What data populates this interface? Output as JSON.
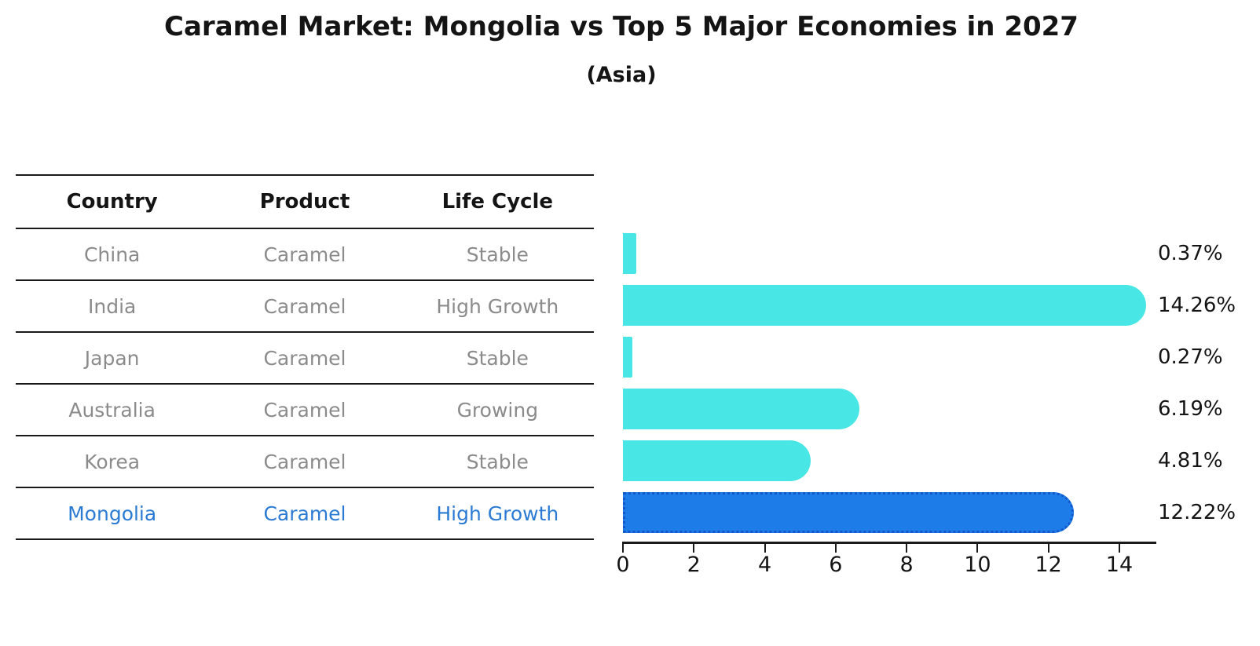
{
  "title": "Caramel Market: Mongolia vs Top 5 Major Economies in 2027",
  "subtitle": "(Asia)",
  "table": {
    "headers": [
      "Country",
      "Product",
      "Life Cycle"
    ]
  },
  "chart_data": {
    "type": "bar",
    "orientation": "horizontal",
    "title": "Caramel Market: Mongolia vs Top 5 Major Economies in 2027",
    "subtitle": "(Asia)",
    "categories": [
      "China",
      "India",
      "Japan",
      "Australia",
      "Korea",
      "Mongolia"
    ],
    "values": [
      0.37,
      14.26,
      0.27,
      6.19,
      4.81,
      12.22
    ],
    "value_labels": [
      "0.37%",
      "14.26%",
      "0.27%",
      "6.19%",
      "4.81%",
      "12.22%"
    ],
    "rows": [
      {
        "country": "China",
        "product": "Caramel",
        "life_cycle": "Stable",
        "value": 0.37,
        "label": "0.37%",
        "highlight": false
      },
      {
        "country": "India",
        "product": "Caramel",
        "life_cycle": "High Growth",
        "value": 14.26,
        "label": "14.26%",
        "highlight": false
      },
      {
        "country": "Japan",
        "product": "Caramel",
        "life_cycle": "Stable",
        "value": 0.27,
        "label": "0.27%",
        "highlight": false
      },
      {
        "country": "Australia",
        "product": "Caramel",
        "life_cycle": "Growing",
        "value": 6.19,
        "label": "6.19%",
        "highlight": false
      },
      {
        "country": "Korea",
        "product": "Caramel",
        "life_cycle": "Stable",
        "value": 4.81,
        "label": "4.81%",
        "highlight": false
      },
      {
        "country": "Mongolia",
        "product": "Caramel",
        "life_cycle": "High Growth",
        "value": 12.22,
        "label": "12.22%",
        "highlight": true
      }
    ],
    "x_ticks": [
      0,
      2,
      4,
      6,
      8,
      10,
      12,
      14
    ],
    "xlim": [
      0,
      15
    ],
    "grid": false,
    "legend": false,
    "colors": {
      "bar": "#48E6E4",
      "highlight_bar": "#1E7CE8",
      "highlight_bar_edge": "#1158CC",
      "highlight_text": "#2B7BD4",
      "cell_text": "#8B8B8B",
      "heading_text": "#141414"
    }
  }
}
